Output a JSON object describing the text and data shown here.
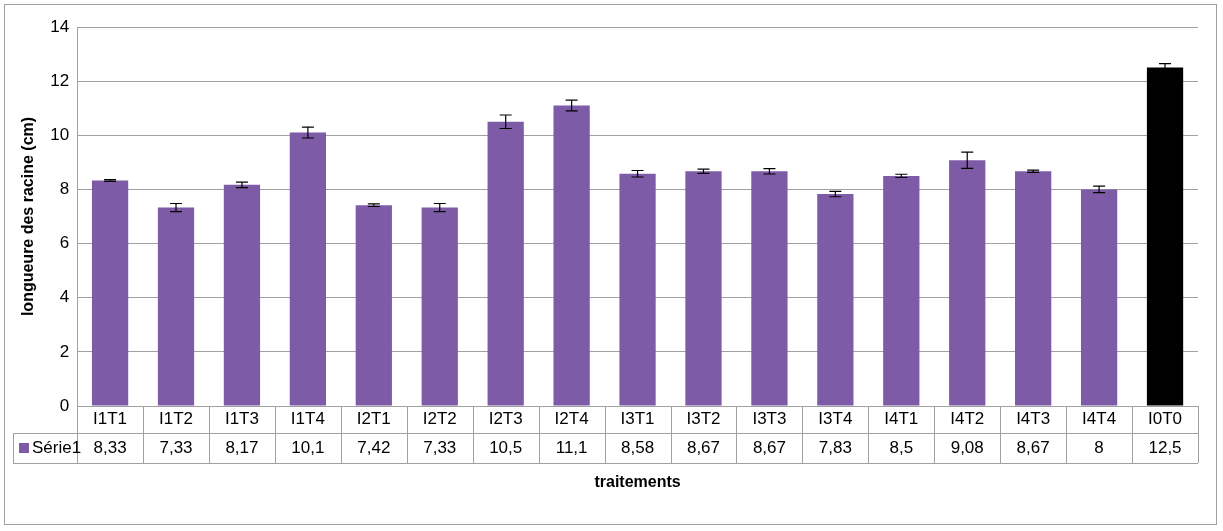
{
  "chart_data": {
    "type": "bar",
    "xlabel": "traitements",
    "ylabel": "longueure des racine (cm)",
    "categories": [
      "I1T1",
      "I1T2",
      "I1T3",
      "I1T4",
      "I2T1",
      "I2T2",
      "I2T3",
      "I2T4",
      "I3T1",
      "I3T2",
      "I3T3",
      "I3T4",
      "I4T1",
      "I4T2",
      "I4T3",
      "I4T4",
      "I0T0"
    ],
    "series": [
      {
        "name": "Série1",
        "color": "#7d5ba6",
        "colors": [
          "#7d5ba6",
          "#7d5ba6",
          "#7d5ba6",
          "#7d5ba6",
          "#7d5ba6",
          "#7d5ba6",
          "#7d5ba6",
          "#7d5ba6",
          "#7d5ba6",
          "#7d5ba6",
          "#7d5ba6",
          "#7d5ba6",
          "#7d5ba6",
          "#7d5ba6",
          "#7d5ba6",
          "#7d5ba6",
          "#000000"
        ],
        "values": [
          8.33,
          7.33,
          8.17,
          10.1,
          7.42,
          7.33,
          10.5,
          11.1,
          8.58,
          8.67,
          8.67,
          7.83,
          8.5,
          9.08,
          8.67,
          8,
          12.5
        ],
        "value_labels": [
          "8,33",
          "7,33",
          "8,17",
          "10,1",
          "7,42",
          "7,33",
          "10,5",
          "11,1",
          "8,58",
          "8,67",
          "8,67",
          "7,83",
          "8,5",
          "9,08",
          "8,67",
          "8",
          "12,5"
        ],
        "errors": [
          0.03,
          0.15,
          0.1,
          0.2,
          0.05,
          0.15,
          0.25,
          0.2,
          0.12,
          0.08,
          0.1,
          0.1,
          0.06,
          0.3,
          0.04,
          0.12,
          0.15
        ]
      }
    ],
    "ylim": [
      0,
      14
    ],
    "yticks": [
      0,
      2,
      4,
      6,
      8,
      10,
      12,
      14
    ],
    "grid": "y",
    "legend": "bottom"
  }
}
